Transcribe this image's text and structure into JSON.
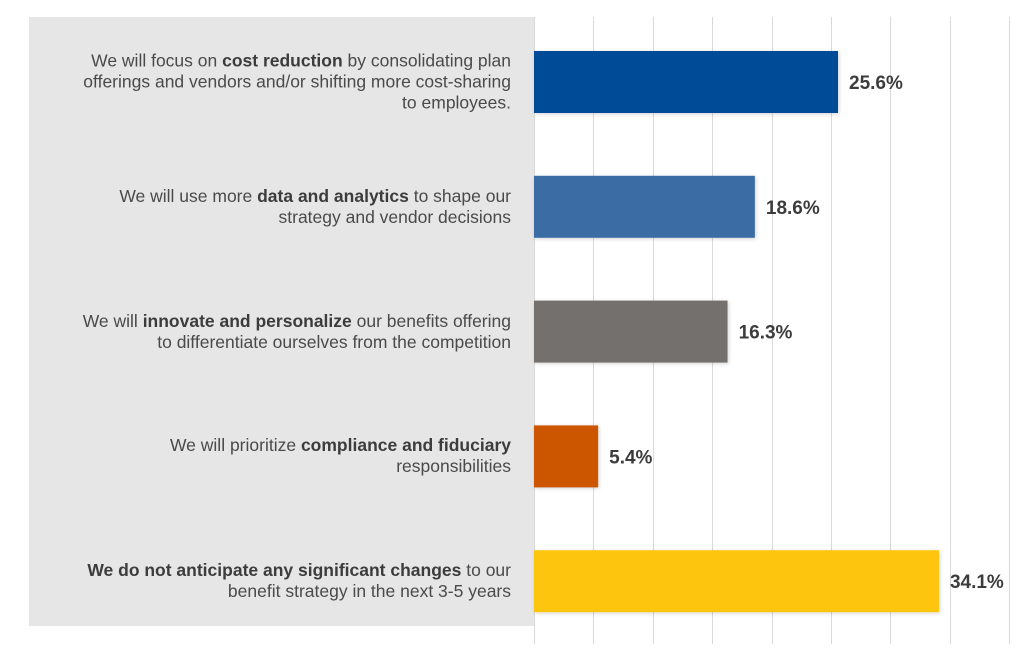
{
  "chart_data": {
    "type": "bar",
    "orientation": "horizontal",
    "title": "",
    "xlabel": "",
    "ylabel": "",
    "xlim": [
      0,
      40
    ],
    "grid": true,
    "grid_step": 5,
    "value_suffix": "%",
    "categories": [
      {
        "parts": [
          {
            "text": "We will focus on ",
            "bold": false
          },
          {
            "text": "cost reduction",
            "bold": true
          },
          {
            "text": " by consolidating plan offerings and vendors and/or shifting more cost-sharing to employees.",
            "bold": false
          }
        ],
        "lines": [
          [
            {
              "text": "We will focus on ",
              "bold": false
            },
            {
              "text": "cost reduction",
              "bold": true
            },
            {
              "text": " by consolidating plan",
              "bold": false
            }
          ],
          [
            {
              "text": "offerings and vendors and/or shifting more cost-sharing",
              "bold": false
            }
          ],
          [
            {
              "text": "to employees.",
              "bold": false
            }
          ]
        ]
      },
      {
        "lines": [
          [
            {
              "text": "We will use more ",
              "bold": false
            },
            {
              "text": "data and analytics",
              "bold": true
            },
            {
              "text": " to shape our",
              "bold": false
            }
          ],
          [
            {
              "text": "strategy and vendor decisions",
              "bold": false
            }
          ]
        ]
      },
      {
        "lines": [
          [
            {
              "text": "We will ",
              "bold": false
            },
            {
              "text": "innovate and personalize",
              "bold": true
            },
            {
              "text": " our benefits offering",
              "bold": false
            }
          ],
          [
            {
              "text": "to differentiate ourselves from the competition",
              "bold": false
            }
          ]
        ]
      },
      {
        "lines": [
          [
            {
              "text": "We will prioritize ",
              "bold": false
            },
            {
              "text": "compliance and fiduciary",
              "bold": true
            }
          ],
          [
            {
              "text": "responsibilities",
              "bold": false
            }
          ]
        ]
      },
      {
        "lines": [
          [
            {
              "text": "We do not anticipate any significant changes",
              "bold": true
            },
            {
              "text": " to our",
              "bold": false
            }
          ],
          [
            {
              "text": "benefit strategy in the next 3-5 years",
              "bold": false
            }
          ]
        ]
      }
    ],
    "values": [
      25.6,
      18.6,
      16.3,
      5.4,
      34.1
    ],
    "value_labels": [
      "25.6%",
      "18.6%",
      "16.3%",
      "5.4%",
      "34.1%"
    ],
    "colors": [
      "#004c97",
      "#3a6ca3",
      "#736f6e",
      "#cc5500",
      "#fdc50c"
    ],
    "label_panel_color": "#e6e6e6",
    "gridline_color": "#d9d9d9",
    "value_label_color": "#3c3c3c"
  }
}
